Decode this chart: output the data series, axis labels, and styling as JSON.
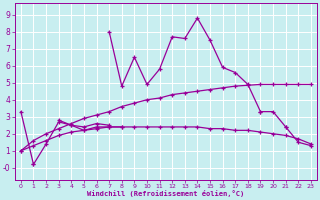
{
  "xlabel": "Windchill (Refroidissement éolien,°C)",
  "background_color": "#c8eef0",
  "grid_color": "#ffffff",
  "line_color": "#990099",
  "xlim": [
    -0.5,
    23.5
  ],
  "ylim": [
    -0.7,
    9.7
  ],
  "xticks": [
    0,
    1,
    2,
    3,
    4,
    5,
    6,
    7,
    8,
    9,
    10,
    11,
    12,
    13,
    14,
    15,
    16,
    17,
    18,
    19,
    20,
    21,
    22,
    23
  ],
  "yticks": [
    0,
    1,
    2,
    3,
    4,
    5,
    6,
    7,
    8,
    9
  ],
  "ytick_labels": [
    "-0",
    "1",
    "2",
    "3",
    "4",
    "5",
    "6",
    "7",
    "8",
    "9"
  ],
  "series": [
    {
      "x": [
        0,
        1
      ],
      "y": [
        3.3,
        0.2
      ]
    },
    {
      "x": [
        1,
        2,
        3,
        4,
        5,
        6,
        7,
        8
      ],
      "y": [
        0.2,
        1.4,
        2.7,
        2.5,
        2.2,
        2.4,
        2.4,
        2.4
      ]
    },
    {
      "x": [
        3,
        4,
        5,
        6,
        7
      ],
      "y": [
        2.8,
        2.5,
        2.4,
        2.6,
        2.5
      ]
    },
    {
      "x": [
        7,
        8,
        9,
        10,
        11,
        12,
        13,
        14,
        15,
        16,
        17,
        18,
        19
      ],
      "y": [
        8.0,
        4.8,
        6.5,
        4.9,
        5.8,
        7.7,
        7.6,
        8.8,
        7.5,
        5.9,
        5.6,
        4.9,
        3.3
      ]
    },
    {
      "x": [
        19,
        20,
        21
      ],
      "y": [
        3.3,
        3.3,
        2.4
      ]
    },
    {
      "x": [
        21,
        22,
        23
      ],
      "y": [
        2.4,
        1.5,
        1.3
      ]
    },
    {
      "x": [
        0,
        1,
        2,
        3,
        4,
        5,
        6,
        7,
        8,
        9,
        10,
        11,
        12,
        13,
        14,
        15,
        16,
        17,
        18,
        19,
        20,
        21,
        22,
        23
      ],
      "y": [
        1.0,
        1.6,
        2.0,
        2.3,
        2.6,
        2.9,
        3.1,
        3.3,
        3.6,
        3.8,
        4.0,
        4.1,
        4.3,
        4.4,
        4.5,
        4.6,
        4.7,
        4.8,
        4.85,
        4.9,
        4.9,
        4.9,
        4.9,
        4.9
      ]
    },
    {
      "x": [
        0,
        1,
        2,
        3,
        4,
        5,
        6,
        7,
        8,
        9,
        10,
        11,
        12,
        13,
        14,
        15,
        16,
        17,
        18,
        19,
        20,
        21,
        22,
        23
      ],
      "y": [
        1.0,
        1.3,
        1.6,
        1.9,
        2.1,
        2.2,
        2.3,
        2.4,
        2.4,
        2.4,
        2.4,
        2.4,
        2.4,
        2.4,
        2.4,
        2.3,
        2.3,
        2.2,
        2.2,
        2.1,
        2.0,
        1.9,
        1.7,
        1.4
      ]
    }
  ]
}
